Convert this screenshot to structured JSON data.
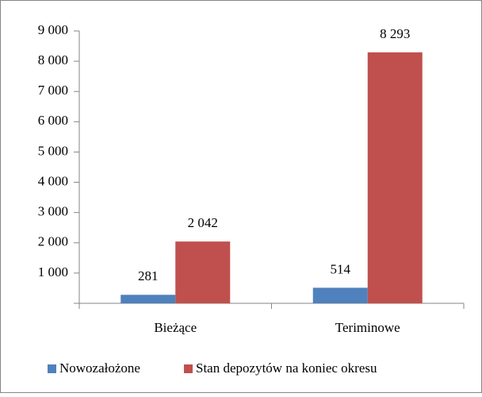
{
  "chart_data": {
    "type": "bar",
    "categories": [
      "Bieżące",
      "Teriminowe"
    ],
    "series": [
      {
        "name": "Nowozałożone",
        "color": "#4f81bd",
        "values": [
          281,
          514
        ]
      },
      {
        "name": "Stan depozytów na koniec okresu",
        "color": "#c0504d",
        "values": [
          2042,
          8293
        ],
        "value_labels": [
          "2 042",
          "8 293"
        ]
      }
    ],
    "ylim": [
      0,
      9000
    ],
    "yticks": [
      {
        "value": 1000,
        "label": "1 000"
      },
      {
        "value": 2000,
        "label": "2 000"
      },
      {
        "value": 3000,
        "label": "3 000"
      },
      {
        "value": 4000,
        "label": "4 000"
      },
      {
        "value": 5000,
        "label": "5 000"
      },
      {
        "value": 6000,
        "label": "6 000"
      },
      {
        "value": 7000,
        "label": "7 000"
      },
      {
        "value": 8000,
        "label": "8 000"
      },
      {
        "value": 9000,
        "label": "9 000"
      }
    ],
    "grid": false,
    "legend": "bottom"
  }
}
